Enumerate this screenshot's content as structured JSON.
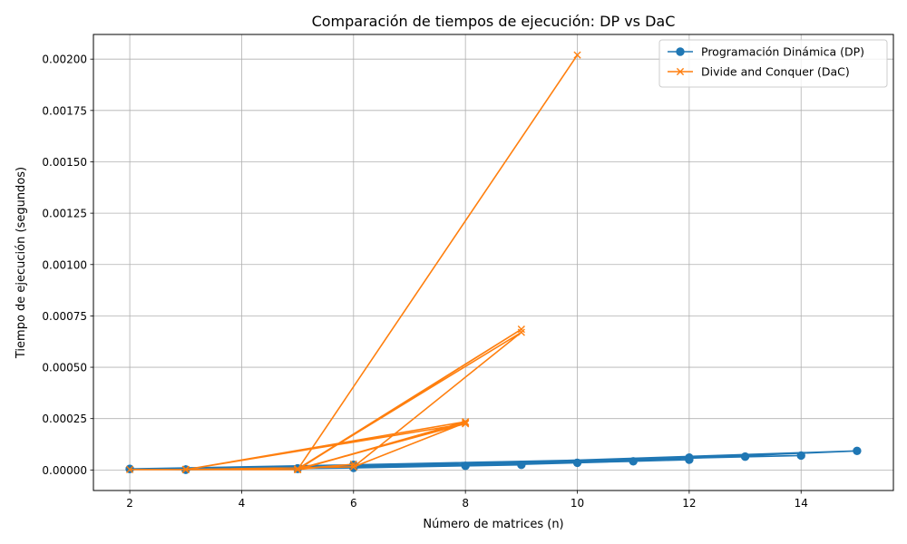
{
  "chart_data": {
    "type": "line",
    "title": "Comparación de tiempos de ejecución: DP vs DaC",
    "xlabel": "Número de matrices (n)",
    "ylabel": "Tiempo de ejecución (segundos)",
    "xlim": [
      1.35,
      15.65
    ],
    "ylim": [
      -0.0001,
      0.00212
    ],
    "x_ticks": [
      2,
      4,
      6,
      8,
      10,
      12,
      14
    ],
    "y_ticks": [
      0,
      0.00025,
      0.0005,
      0.00075,
      0.001,
      0.00125,
      0.0015,
      0.00175,
      0.002
    ],
    "x_tick_labels": [
      "2",
      "4",
      "6",
      "8",
      "10",
      "12",
      "14"
    ],
    "y_tick_labels": [
      "0.00000",
      "0.00025",
      "0.00050",
      "0.00075",
      "0.00100",
      "0.00125",
      "0.00150",
      "0.00175",
      "0.00200"
    ],
    "grid": true,
    "legend_position": "top-right",
    "series": [
      {
        "name": "Programación Dinámica (DP)",
        "color": "#1f77b4",
        "marker": "circle",
        "x": [
          2,
          3,
          5,
          3,
          6,
          9,
          5,
          11,
          3,
          8,
          12,
          3,
          10,
          15,
          6,
          13,
          12,
          3,
          14,
          6,
          2
        ],
        "y": [
          5e-06,
          2e-06,
          5e-06,
          2e-06,
          1e-05,
          2.5e-05,
          8e-06,
          4.2e-05,
          2e-06,
          2e-05,
          5e-05,
          2e-06,
          3.5e-05,
          9.3e-05,
          1.2e-05,
          6.5e-05,
          6e-05,
          2e-06,
          7e-05,
          2.5e-05,
          5e-06
        ]
      },
      {
        "name": "Divide and Conquer (DaC)",
        "color": "#ff7f0e",
        "marker": "x",
        "x": [
          2,
          3,
          5,
          8,
          3,
          5,
          9,
          5,
          6,
          5,
          10,
          5,
          8,
          6,
          9,
          5,
          8,
          3,
          6,
          3
        ],
        "y": [
          2e-06,
          2e-06,
          2e-06,
          0.000235,
          2e-06,
          2e-06,
          0.000685,
          5e-06,
          2.8e-05,
          2e-06,
          0.00202,
          2e-06,
          0.00023,
          1.5e-05,
          0.00067,
          5e-06,
          0.000225,
          2e-06,
          1.5e-05,
          2e-06
        ]
      }
    ]
  }
}
